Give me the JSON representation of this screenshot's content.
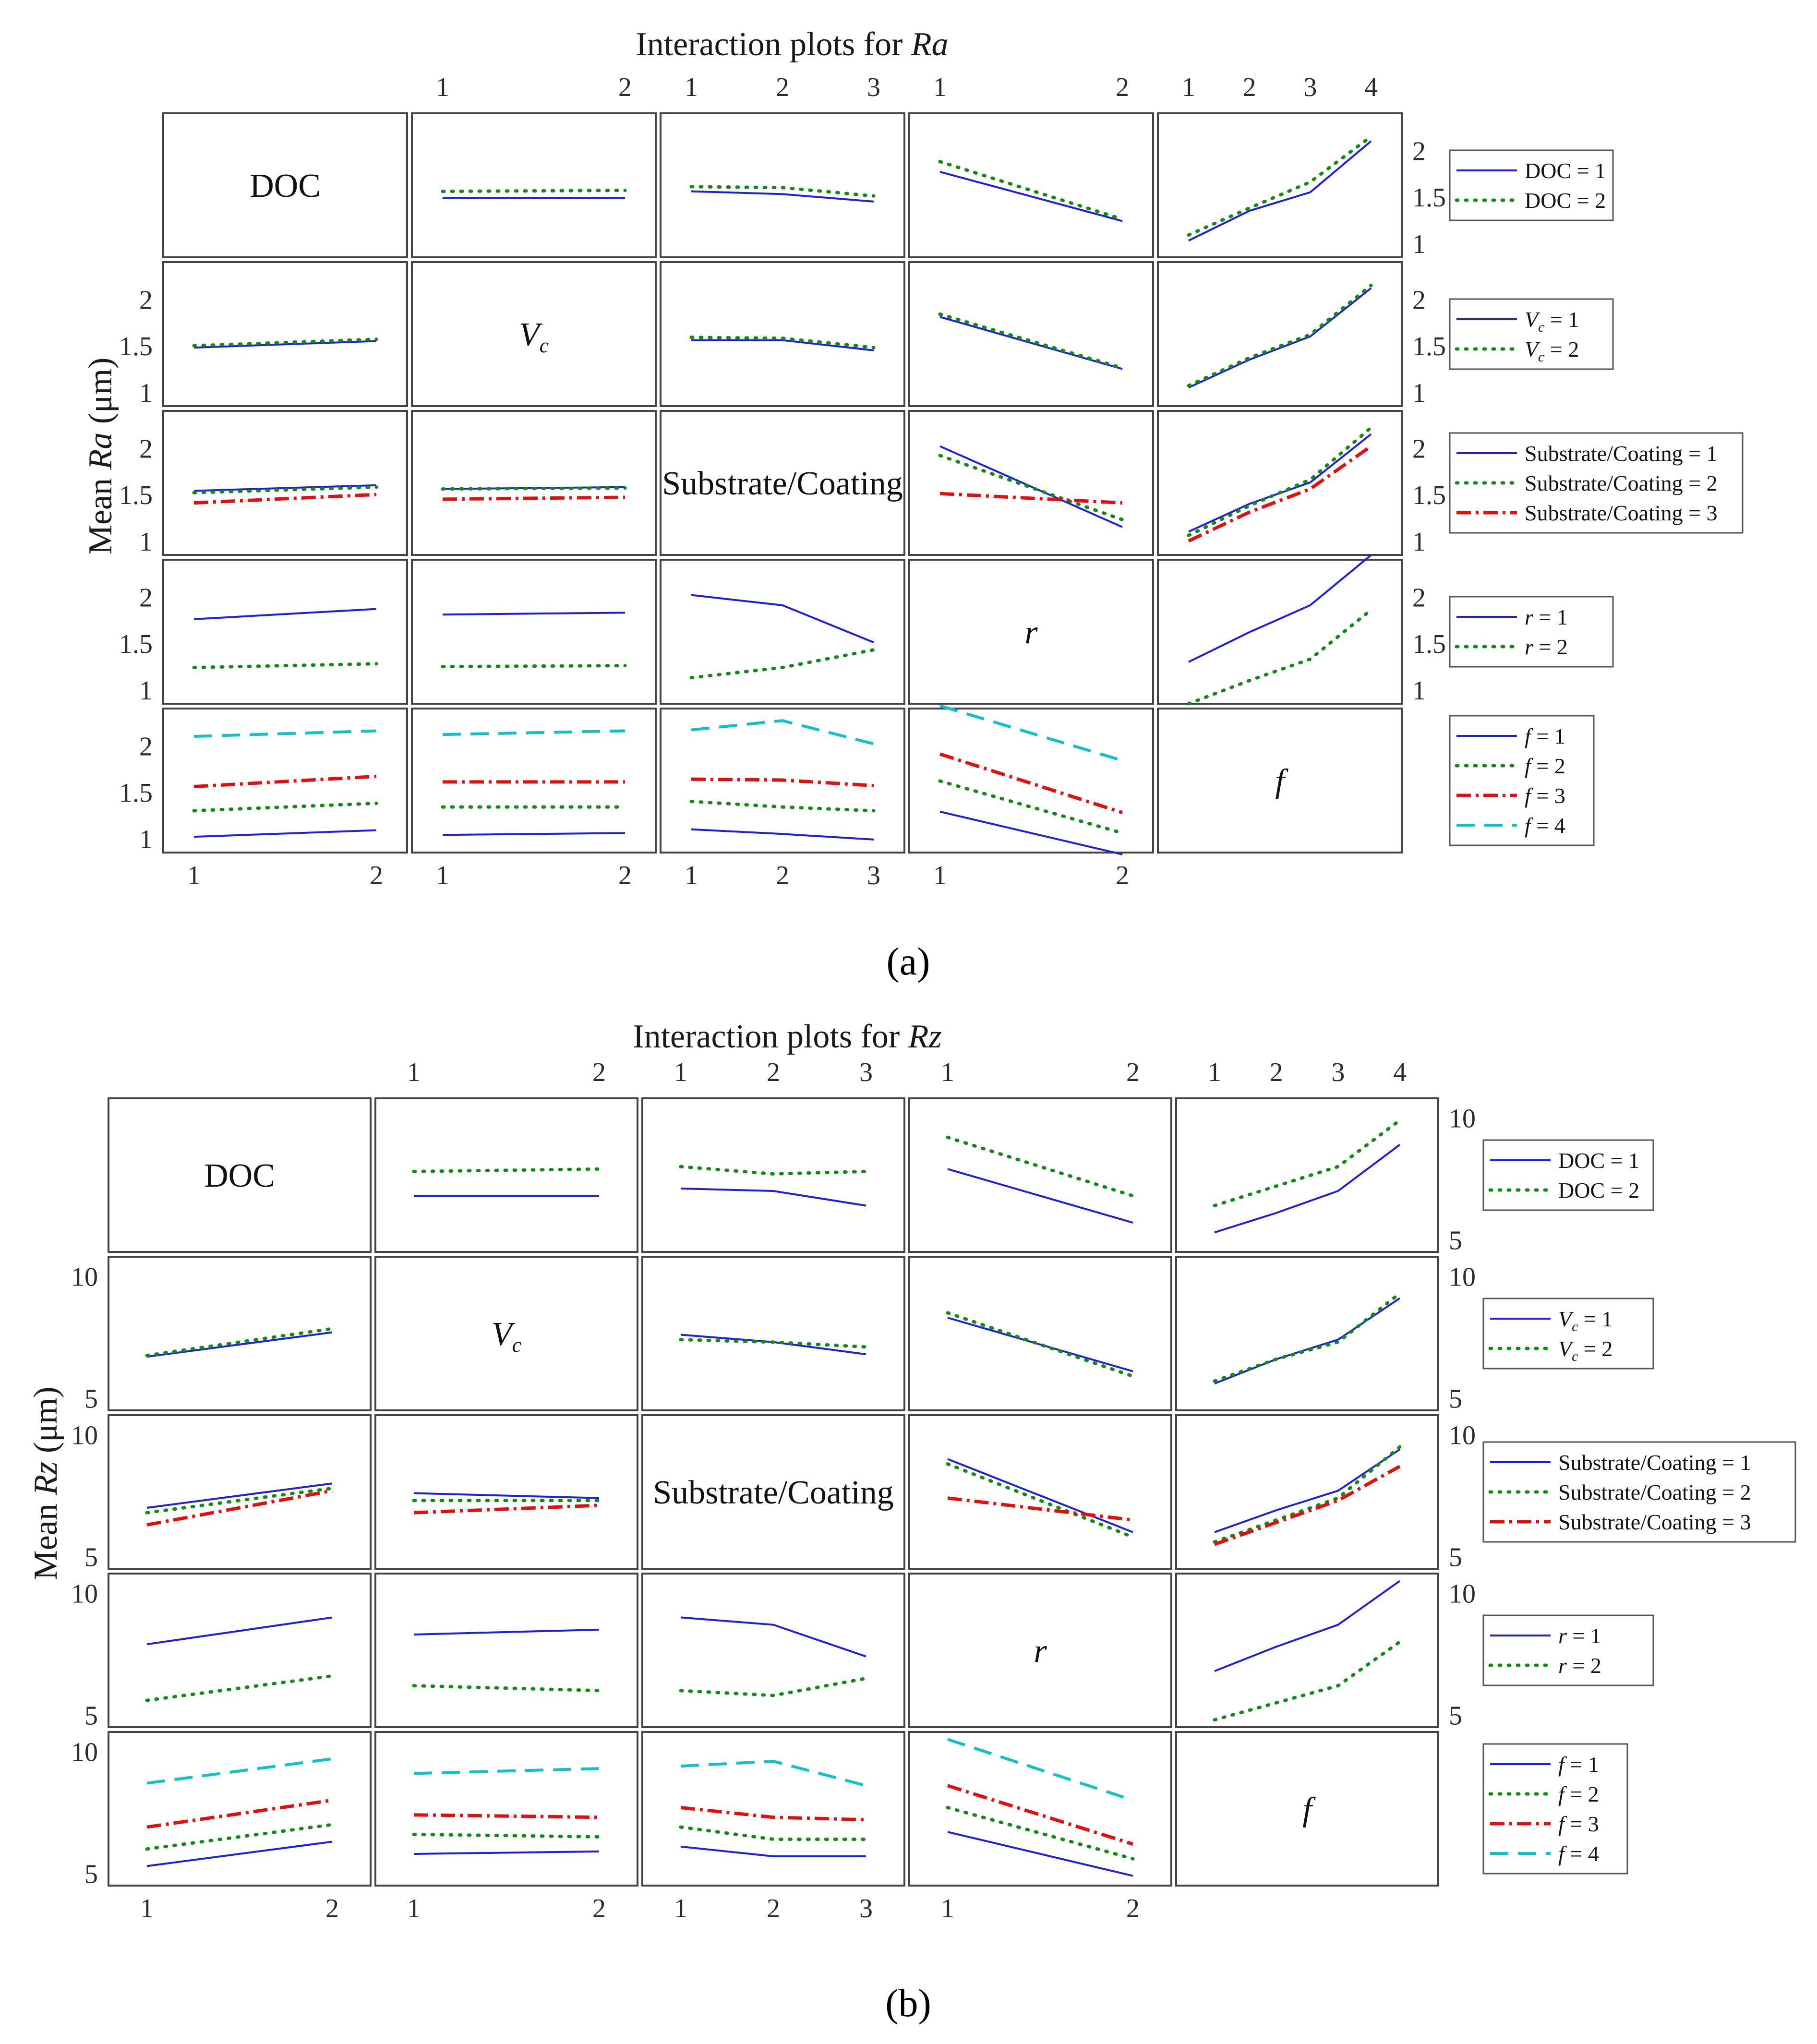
{
  "colors": {
    "level1": "#1f1fe0",
    "level2": "#148a14",
    "level3": "#e01010",
    "level4": "#14c0c8"
  },
  "captions": {
    "a": "(a)",
    "b": "(b)"
  },
  "factors": [
    "DOC",
    "V_c",
    "Substrate/Coating",
    "r",
    "f"
  ],
  "chart_data": [
    {
      "type": "line",
      "title": "Interaction plots for Ra",
      "title_prefix": "Interaction plots for ",
      "title_var": "Ra",
      "ylabel": "Mean Ra (μm)",
      "ylabel_prefix": "Mean ",
      "ylabel_var": "Ra",
      "ylabel_suffix": " (μm)",
      "ylim": [
        0.85,
        2.4
      ],
      "yticks": [
        1,
        1.5,
        2
      ],
      "ytick_labels": [
        "1",
        "1.5",
        "2"
      ],
      "factors": [
        {
          "name": "DOC",
          "diag_label": "DOC",
          "levels": [
            1,
            2
          ],
          "legend": [
            "DOC = 1",
            "DOC = 2"
          ]
        },
        {
          "name": "Vc",
          "diag_label": "V_c",
          "levels": [
            1,
            2
          ],
          "legend": [
            "V_c = 1",
            "V_c = 2"
          ]
        },
        {
          "name": "Substrate/Coating",
          "diag_label": "Substrate/Coating",
          "levels": [
            1,
            2,
            3
          ],
          "legend": [
            "Substrate/Coating = 1",
            "Substrate/Coating = 2",
            "Substrate/Coating = 3"
          ]
        },
        {
          "name": "r",
          "diag_label": "r",
          "levels": [
            1,
            2
          ],
          "legend": [
            "r = 1",
            "r = 2"
          ]
        },
        {
          "name": "f",
          "diag_label": "f",
          "levels": [
            1,
            2,
            3,
            4
          ],
          "legend": [
            "f = 1",
            "f = 2",
            "f = 3",
            "f = 4"
          ]
        }
      ],
      "cells": {
        "0_1": [
          [
            1.49,
            1.49
          ],
          [
            1.56,
            1.57
          ]
        ],
        "0_2": [
          [
            1.56,
            1.53,
            1.45
          ],
          [
            1.61,
            1.6,
            1.51
          ]
        ],
        "0_3": [
          [
            1.77,
            1.24
          ],
          [
            1.88,
            1.26
          ]
        ],
        "0_4": [
          [
            1.03,
            1.35,
            1.55,
            2.1
          ],
          [
            1.09,
            1.38,
            1.66,
            2.15
          ]
        ],
        "1_0": [
          [
            1.48,
            1.55
          ],
          [
            1.5,
            1.57
          ]
        ],
        "1_2": [
          [
            1.56,
            1.56,
            1.45
          ],
          [
            1.59,
            1.58,
            1.48
          ]
        ],
        "1_3": [
          [
            1.81,
            1.25
          ],
          [
            1.84,
            1.26
          ]
        ],
        "1_4": [
          [
            1.05,
            1.35,
            1.6,
            2.12
          ],
          [
            1.07,
            1.37,
            1.62,
            2.15
          ]
        ],
        "2_0": [
          [
            1.54,
            1.6
          ],
          [
            1.52,
            1.58
          ],
          [
            1.41,
            1.5
          ]
        ],
        "2_1": [
          [
            1.56,
            1.58
          ],
          [
            1.56,
            1.57
          ],
          [
            1.45,
            1.47
          ]
        ],
        "2_3": [
          [
            2.02,
            1.15
          ],
          [
            1.92,
            1.23
          ],
          [
            1.51,
            1.41
          ]
        ],
        "2_4": [
          [
            1.1,
            1.4,
            1.63,
            2.15
          ],
          [
            1.06,
            1.38,
            1.66,
            2.22
          ],
          [
            1.0,
            1.31,
            1.56,
            2.02
          ]
        ],
        "3_0": [
          [
            1.76,
            1.87
          ],
          [
            1.24,
            1.28
          ]
        ],
        "3_1": [
          [
            1.81,
            1.83
          ],
          [
            1.25,
            1.26
          ]
        ],
        "3_2": [
          [
            2.02,
            1.91,
            1.51
          ],
          [
            1.13,
            1.24,
            1.43
          ]
        ],
        "3_4": [
          [
            1.3,
            1.62,
            1.91,
            2.45
          ],
          [
            0.85,
            1.1,
            1.33,
            1.86
          ]
        ],
        "4_0": [
          [
            1.02,
            1.09
          ],
          [
            1.3,
            1.38
          ],
          [
            1.56,
            1.67
          ],
          [
            2.1,
            2.16
          ]
        ],
        "4_1": [
          [
            1.04,
            1.06
          ],
          [
            1.34,
            1.34
          ],
          [
            1.61,
            1.61
          ],
          [
            2.12,
            2.16
          ]
        ],
        "4_2": [
          [
            1.1,
            1.05,
            0.99
          ],
          [
            1.4,
            1.34,
            1.3
          ],
          [
            1.64,
            1.63,
            1.57
          ],
          [
            2.17,
            2.27,
            2.02
          ]
        ],
        "4_3": [
          [
            1.29,
            0.83
          ],
          [
            1.62,
            1.06
          ],
          [
            1.91,
            1.28
          ],
          [
            2.43,
            1.84
          ]
        ]
      }
    },
    {
      "type": "line",
      "title": "Interaction plots for Rz",
      "title_prefix": "Interaction plots for ",
      "title_var": "Rz",
      "ylabel": "Mean Rz (μm)",
      "ylabel_prefix": "Mean ",
      "ylabel_var": "Rz",
      "ylabel_suffix": " (μm)",
      "ylim": [
        4.5,
        10.8
      ],
      "yticks": [
        5,
        10
      ],
      "ytick_labels": [
        "5",
        "10"
      ],
      "factors": [
        {
          "name": "DOC",
          "diag_label": "DOC",
          "levels": [
            1,
            2
          ],
          "legend": [
            "DOC = 1",
            "DOC = 2"
          ]
        },
        {
          "name": "Vc",
          "diag_label": "V_c",
          "levels": [
            1,
            2
          ],
          "legend": [
            "V_c = 1",
            "V_c = 2"
          ]
        },
        {
          "name": "Substrate/Coating",
          "diag_label": "Substrate/Coating",
          "levels": [
            1,
            2,
            3
          ],
          "legend": [
            "Substrate/Coating = 1",
            "Substrate/Coating = 2",
            "Substrate/Coating = 3"
          ]
        },
        {
          "name": "r",
          "diag_label": "r",
          "levels": [
            1,
            2
          ],
          "legend": [
            "r = 1",
            "r = 2"
          ]
        },
        {
          "name": "f",
          "diag_label": "f",
          "levels": [
            1,
            2,
            3,
            4
          ],
          "legend": [
            "f = 1",
            "f = 2",
            "f = 3",
            "f = 4"
          ]
        }
      ],
      "cells": {
        "0_1": [
          [
            6.8,
            6.8
          ],
          [
            7.8,
            7.9
          ]
        ],
        "0_2": [
          [
            7.1,
            7.0,
            6.4
          ],
          [
            8.0,
            7.7,
            7.8
          ]
        ],
        "0_3": [
          [
            7.9,
            5.7
          ],
          [
            9.2,
            6.8
          ]
        ],
        "0_4": [
          [
            5.3,
            6.1,
            7.0,
            8.9
          ],
          [
            6.4,
            7.2,
            8.0,
            9.9
          ]
        ],
        "1_0": [
          [
            6.7,
            7.7
          ],
          [
            6.75,
            7.85
          ]
        ],
        "1_2": [
          [
            7.6,
            7.3,
            6.8
          ],
          [
            7.4,
            7.3,
            7.1
          ]
        ],
        "1_3": [
          [
            8.3,
            6.1
          ],
          [
            8.5,
            5.9
          ]
        ],
        "1_4": [
          [
            5.6,
            6.6,
            7.4,
            9.1
          ],
          [
            5.7,
            6.6,
            7.3,
            9.3
          ]
        ],
        "2_0": [
          [
            7.0,
            8.0
          ],
          [
            6.8,
            7.8
          ],
          [
            6.3,
            7.7
          ]
        ],
        "2_1": [
          [
            7.6,
            7.4
          ],
          [
            7.3,
            7.3
          ],
          [
            6.8,
            7.1
          ]
        ],
        "2_3": [
          [
            9.0,
            6.0
          ],
          [
            8.8,
            5.8
          ],
          [
            7.4,
            6.5
          ]
        ],
        "2_4": [
          [
            6.0,
            6.9,
            7.7,
            9.4
          ],
          [
            5.6,
            6.5,
            7.4,
            9.5
          ],
          [
            5.5,
            6.4,
            7.3,
            8.7
          ]
        ],
        "3_0": [
          [
            7.9,
            9.0
          ],
          [
            5.6,
            6.6
          ]
        ],
        "3_1": [
          [
            8.3,
            8.5
          ],
          [
            6.2,
            6.0
          ]
        ],
        "3_2": [
          [
            9.0,
            8.7,
            7.4
          ],
          [
            6.0,
            5.8,
            6.5
          ]
        ],
        "3_4": [
          [
            6.8,
            7.8,
            8.7,
            10.5
          ],
          [
            4.8,
            5.5,
            6.2,
            8.0
          ]
        ],
        "4_0": [
          [
            5.3,
            6.3
          ],
          [
            6.0,
            7.0
          ],
          [
            6.9,
            8.0
          ],
          [
            8.7,
            9.7
          ]
        ],
        "4_1": [
          [
            5.8,
            5.9
          ],
          [
            6.6,
            6.5
          ],
          [
            7.4,
            7.3
          ],
          [
            9.1,
            9.3
          ]
        ],
        "4_2": [
          [
            6.1,
            5.7,
            5.7
          ],
          [
            6.9,
            6.4,
            6.4
          ],
          [
            7.7,
            7.3,
            7.2
          ],
          [
            9.4,
            9.6,
            8.6
          ]
        ],
        "4_3": [
          [
            6.7,
            4.9
          ],
          [
            7.7,
            5.6
          ],
          [
            8.6,
            6.2
          ],
          [
            10.5,
            8.0
          ]
        ]
      }
    }
  ]
}
